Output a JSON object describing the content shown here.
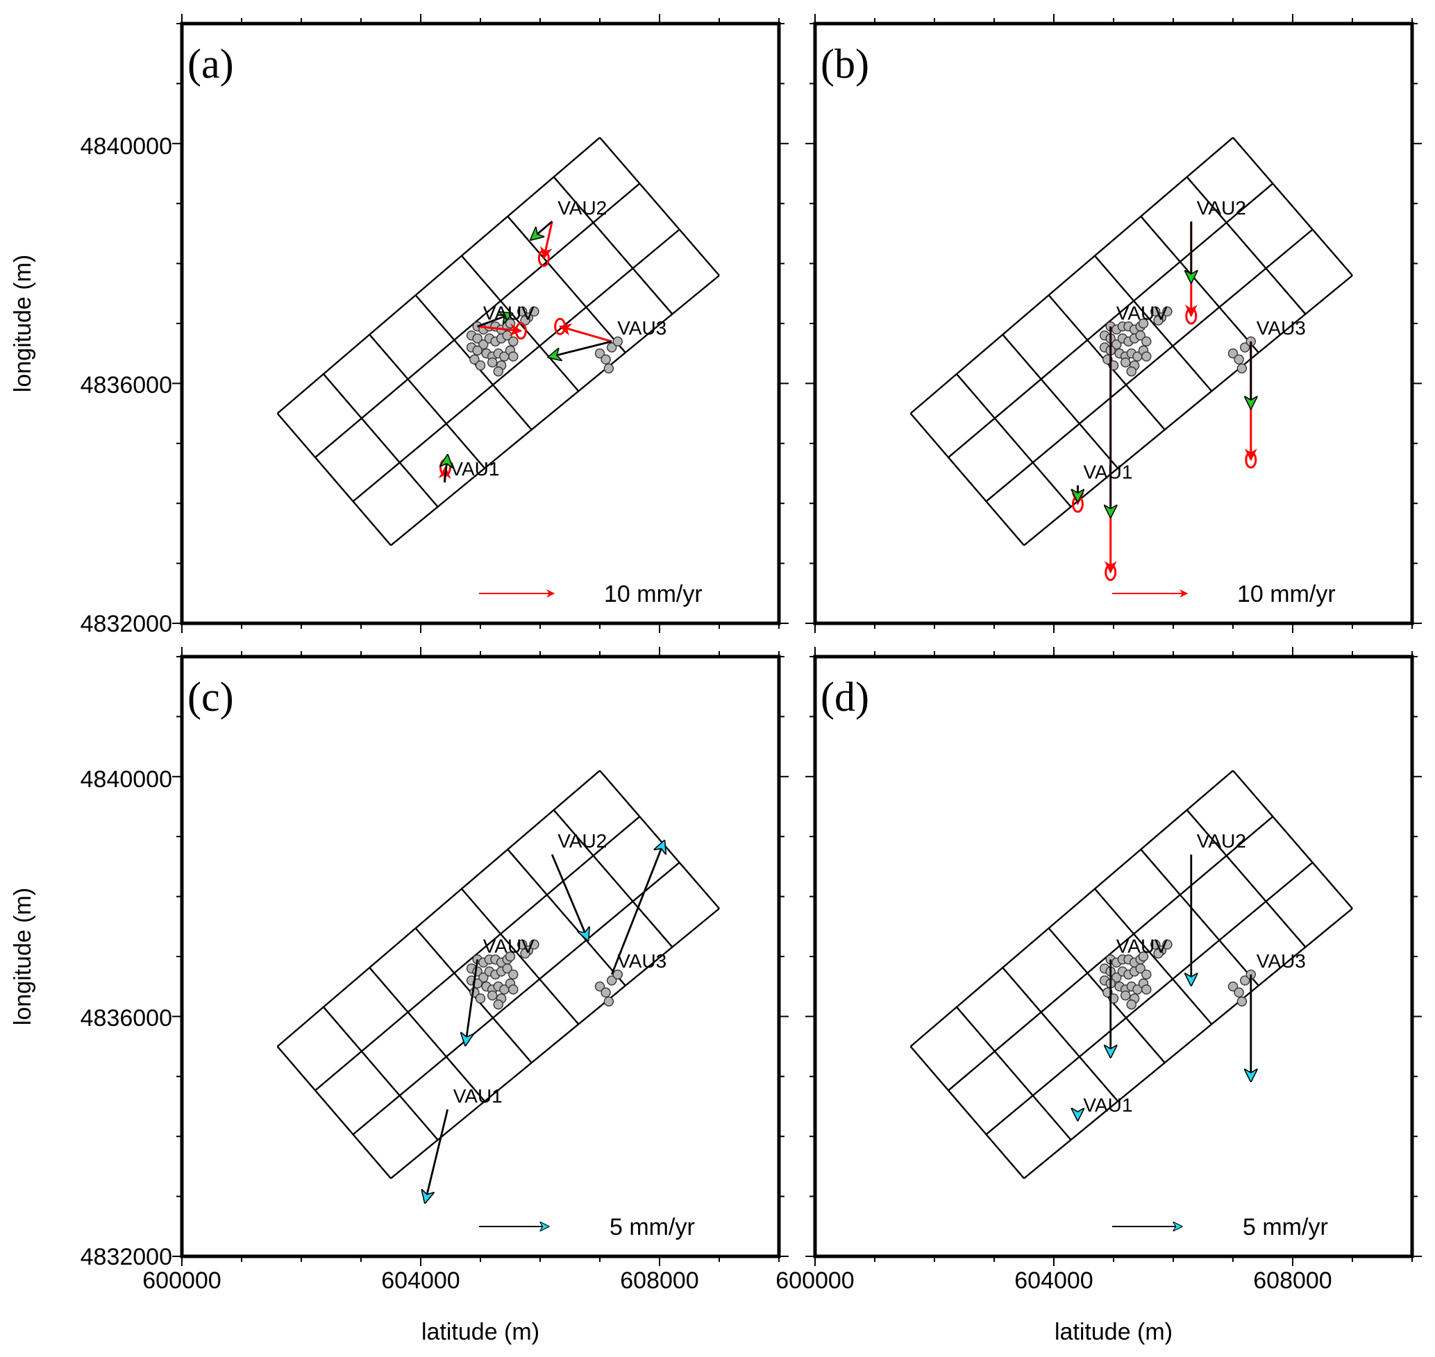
{
  "colors": {
    "observed": "#000000",
    "model_a": "#ff0000",
    "head_a": "#22cc22",
    "head_c": "#22d8f0",
    "quake_fill": "#b5b5b5"
  },
  "chart_data": [
    {
      "panel": "(a)",
      "type": "vector-map",
      "xlim": [
        600000,
        610000
      ],
      "ylim": [
        4832000,
        4842000
      ],
      "yticks": [
        "4832000",
        "4836000",
        "4840000"
      ],
      "ylabel": "longitude (m)",
      "xlabel": "",
      "xticks": [],
      "legend": {
        "text": "10 mm/yr",
        "color": "red",
        "scale_mm_yr": 10
      },
      "stations": [
        {
          "name": "VAU1",
          "x": 604400,
          "y": 4834350,
          "obs": [
            0.4,
            3.6
          ],
          "model": [
            0.1,
            2.0
          ]
        },
        {
          "name": "VAU2",
          "x": 606200,
          "y": 4838700,
          "obs": [
            -2.8,
            -2.4
          ],
          "model": [
            -1.1,
            -4.9
          ]
        },
        {
          "name": "VAUV",
          "x": 604950,
          "y": 4836950,
          "obs": [
            4.6,
            1.7
          ],
          "model": [
            5.8,
            -0.6
          ]
        },
        {
          "name": "VAU3",
          "x": 607200,
          "y": 4836700,
          "obs": [
            -8.4,
            -2.1
          ],
          "model": [
            -6.9,
            2.0
          ]
        }
      ]
    },
    {
      "panel": "(b)",
      "type": "vector-map",
      "xlim": [
        600000,
        610000
      ],
      "ylim": [
        4832000,
        4842000
      ],
      "yticks": [],
      "ylabel": "",
      "xlabel": "",
      "xticks": [],
      "legend": {
        "text": "10 mm/yr",
        "color": "red",
        "scale_mm_yr": 10
      },
      "stations": [
        {
          "name": "VAU1",
          "x": 604400,
          "y": 4834300,
          "obs": [
            0,
            -2.1
          ],
          "model": [
            0,
            -2.5
          ]
        },
        {
          "name": "VAU2",
          "x": 606300,
          "y": 4838700,
          "obs": [
            0,
            -8.1
          ],
          "model": [
            0,
            -12.6
          ]
        },
        {
          "name": "VAUV",
          "x": 604950,
          "y": 4836950,
          "obs": [
            0,
            -25.4
          ],
          "model": [
            0,
            -32.8
          ]
        },
        {
          "name": "VAU3",
          "x": 607300,
          "y": 4836700,
          "obs": [
            0,
            -8.9
          ],
          "model": [
            0,
            -15.8
          ]
        }
      ]
    },
    {
      "panel": "(c)",
      "type": "vector-map",
      "xlim": [
        600000,
        610000
      ],
      "ylim": [
        4832000,
        4842000
      ],
      "yticks": [
        "4832000",
        "4836000",
        "4840000"
      ],
      "ylabel": "longitude (m)",
      "xlabel": "latitude (m)",
      "xticks": [
        "600000",
        "604000",
        "608000"
      ],
      "legend": {
        "text": "5 mm/yr",
        "color": "cyan",
        "scale_mm_yr": 5
      },
      "stations": [
        {
          "name": "VAU1",
          "x": 604450,
          "y": 4834450,
          "obs": [
            -1.5,
            -6.2
          ]
        },
        {
          "name": "VAU2",
          "x": 606200,
          "y": 4838700,
          "obs": [
            2.4,
            -5.7
          ]
        },
        {
          "name": "VAUV",
          "x": 604950,
          "y": 4836950,
          "obs": [
            -0.8,
            -5.7
          ]
        },
        {
          "name": "VAU3",
          "x": 607200,
          "y": 4836700,
          "obs": [
            3.5,
            8.9
          ]
        }
      ]
    },
    {
      "panel": "(d)",
      "type": "vector-map",
      "xlim": [
        600000,
        610000
      ],
      "ylim": [
        4832000,
        4842000
      ],
      "yticks": [],
      "ylabel": "",
      "xlabel": "latitude (m)",
      "xticks": [
        "600000",
        "604000",
        "608000"
      ],
      "legend": {
        "text": "5 mm/yr",
        "color": "cyan",
        "scale_mm_yr": 5
      },
      "stations": [
        {
          "name": "VAU1",
          "x": 604400,
          "y": 4834300,
          "obs": [
            0,
            -0.1
          ]
        },
        {
          "name": "VAU2",
          "x": 606300,
          "y": 4838700,
          "obs": [
            0,
            -8.7
          ]
        },
        {
          "name": "VAUV",
          "x": 604950,
          "y": 4836950,
          "obs": [
            0,
            -6.5
          ]
        },
        {
          "name": "VAU3",
          "x": 607300,
          "y": 4836700,
          "obs": [
            0,
            -7.1
          ]
        }
      ]
    }
  ],
  "fault_grid": {
    "corners": [
      [
        601600,
        4835500
      ],
      [
        603500,
        4833300
      ],
      [
        609000,
        4837800
      ],
      [
        607000,
        4840100
      ]
    ],
    "along_strike_cells": 7,
    "down_dip_cells": 3
  },
  "seismicity": [
    [
      604950,
      4836950
    ],
    [
      605050,
      4836900
    ],
    [
      605150,
      4836950
    ],
    [
      605250,
      4836950
    ],
    [
      605350,
      4836900
    ],
    [
      605450,
      4836950
    ],
    [
      605500,
      4837000
    ],
    [
      604850,
      4836800
    ],
    [
      604950,
      4836750
    ],
    [
      605050,
      4836650
    ],
    [
      605150,
      4836750
    ],
    [
      605250,
      4836700
    ],
    [
      605350,
      4836750
    ],
    [
      605450,
      4836800
    ],
    [
      605550,
      4836700
    ],
    [
      604850,
      4836600
    ],
    [
      604950,
      4836550
    ],
    [
      605100,
      4836500
    ],
    [
      605200,
      4836450
    ],
    [
      605300,
      4836500
    ],
    [
      605400,
      4836450
    ],
    [
      605500,
      4836550
    ],
    [
      605550,
      4836450
    ],
    [
      604900,
      4836400
    ],
    [
      605000,
      4836300
    ],
    [
      605200,
      4836350
    ],
    [
      605350,
      4836300
    ],
    [
      605300,
      4836200
    ],
    [
      605700,
      4837200
    ],
    [
      605800,
      4837100
    ],
    [
      605900,
      4837200
    ],
    [
      605750,
      4837050
    ],
    [
      607000,
      4836500
    ],
    [
      607100,
      4836400
    ],
    [
      607200,
      4836600
    ],
    [
      607300,
      4836700
    ],
    [
      607150,
      4836250
    ]
  ]
}
